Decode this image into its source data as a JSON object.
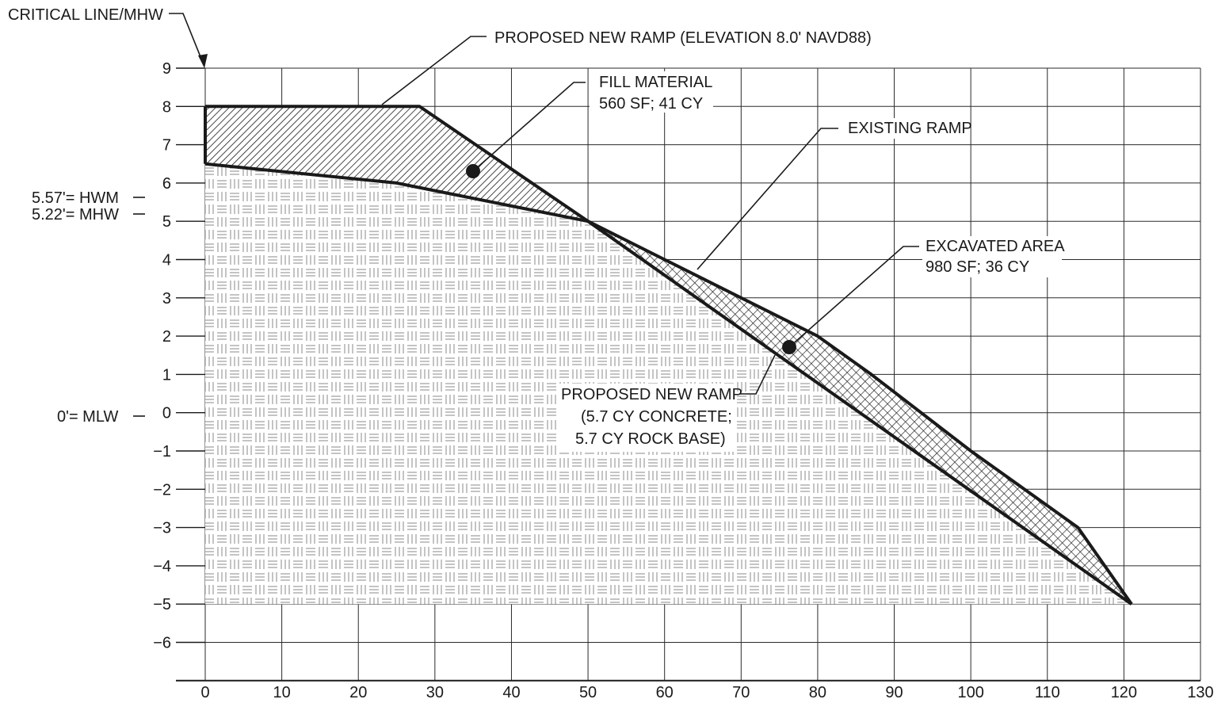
{
  "annotations": {
    "critical_line": "CRITICAL LINE/MHW",
    "proposed_ramp_top": "PROPOSED NEW RAMP (ELEVATION 8.0' NAVD88)",
    "fill_material_l1": "FILL MATERIAL",
    "fill_material_l2": "560 SF; 41 CY",
    "existing_ramp": "EXISTING RAMP",
    "excavated_l1": "EXCAVATED AREA",
    "excavated_l2": "980 SF; 36 CY",
    "proposed_ramp_bottom_l1": "PROPOSED NEW RAMP",
    "proposed_ramp_bottom_l2": "(5.7 CY CONCRETE;",
    "proposed_ramp_bottom_l3": "5.7 CY ROCK BASE)",
    "hwm": "5.57'= HWM",
    "mhw": "5.22'= MHW",
    "mlw": "0'= MLW"
  },
  "chart_data": {
    "type": "area",
    "x_ticks": [
      "0",
      "10",
      "20",
      "30",
      "40",
      "50",
      "60",
      "70",
      "80",
      "90",
      "100",
      "110",
      "120",
      "130"
    ],
    "y_ticks": [
      "9",
      "8",
      "7",
      "6",
      "5",
      "4",
      "3",
      "2",
      "1",
      "0",
      "−1",
      "−2",
      "−3",
      "−4",
      "−5",
      "−6"
    ],
    "xlim": [
      0,
      130
    ],
    "ylim": [
      -7,
      9
    ],
    "grid": true,
    "series": [
      {
        "role": "proposed_ramp",
        "x": [
          0,
          28,
          50,
          121
        ],
        "y": [
          8.0,
          8.0,
          5.0,
          -5.0
        ]
      },
      {
        "role": "existing_ramp",
        "x": [
          0,
          25,
          50,
          60,
          70,
          80,
          87,
          100,
          114,
          121
        ],
        "y": [
          6.5,
          6.0,
          5.0,
          4.0,
          3.0,
          2.0,
          1.0,
          -1.0,
          -3.0,
          -5.0
        ]
      }
    ],
    "fill_area": {
      "label": "FILL MATERIAL",
      "value": "560 SF; 41 CY"
    },
    "excavated_area": {
      "label": "EXCAVATED AREA",
      "value": "980 SF; 36 CY"
    },
    "reference_levels": [
      {
        "label": "HWM",
        "elevation": 5.57
      },
      {
        "label": "MHW",
        "elevation": 5.22
      },
      {
        "label": "MLW",
        "elevation": 0
      }
    ]
  }
}
